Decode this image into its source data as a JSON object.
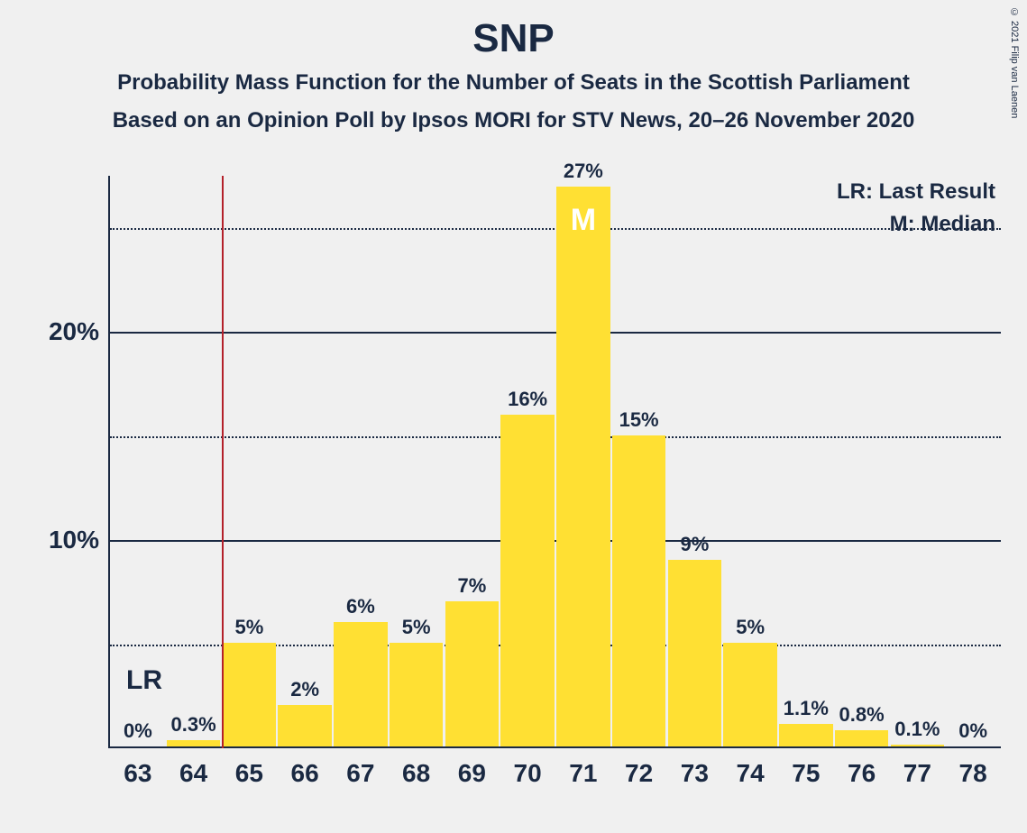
{
  "copyright": "© 2021 Filip van Laenen",
  "title": "SNP",
  "subtitle1": "Probability Mass Function for the Number of Seats in the Scottish Parliament",
  "subtitle2": "Based on an Opinion Poll by Ipsos MORI for STV News, 20–26 November 2020",
  "legend": {
    "lr": "LR: Last Result",
    "m": "M: Median"
  },
  "chart": {
    "type": "bar",
    "bar_color": "#ffe033",
    "background_color": "#f0f0f0",
    "axis_color": "#1a2942",
    "lr_line_color": "#b4202a",
    "median_text_color": "#ffffff",
    "y_max": 27.5,
    "y_ticks": [
      {
        "value": 10,
        "label": "10%",
        "style": "solid"
      },
      {
        "value": 20,
        "label": "20%",
        "style": "solid"
      },
      {
        "value": 5,
        "label": "",
        "style": "dotted"
      },
      {
        "value": 15,
        "label": "",
        "style": "dotted"
      },
      {
        "value": 25,
        "label": "",
        "style": "dotted"
      }
    ],
    "lr": {
      "after_category": 64,
      "label": "LR",
      "label_bottom_pct": 6
    },
    "median_category": 71,
    "median_marker": "M",
    "bars": [
      {
        "x": 63,
        "value": 0,
        "label": "0%"
      },
      {
        "x": 64,
        "value": 0.3,
        "label": "0.3%"
      },
      {
        "x": 65,
        "value": 5,
        "label": "5%"
      },
      {
        "x": 66,
        "value": 2,
        "label": "2%"
      },
      {
        "x": 67,
        "value": 6,
        "label": "6%"
      },
      {
        "x": 68,
        "value": 5,
        "label": "5%"
      },
      {
        "x": 69,
        "value": 7,
        "label": "7%"
      },
      {
        "x": 70,
        "value": 16,
        "label": "16%"
      },
      {
        "x": 71,
        "value": 27,
        "label": "27%"
      },
      {
        "x": 72,
        "value": 15,
        "label": "15%"
      },
      {
        "x": 73,
        "value": 9,
        "label": "9%"
      },
      {
        "x": 74,
        "value": 5,
        "label": "5%"
      },
      {
        "x": 75,
        "value": 1.1,
        "label": "1.1%"
      },
      {
        "x": 76,
        "value": 0.8,
        "label": "0.8%"
      },
      {
        "x": 77,
        "value": 0.1,
        "label": "0.1%"
      },
      {
        "x": 78,
        "value": 0,
        "label": "0%"
      }
    ],
    "label_fontsize": 22,
    "tick_fontsize": 28,
    "title_fontsize": 44,
    "subtitle_fontsize": 24
  }
}
